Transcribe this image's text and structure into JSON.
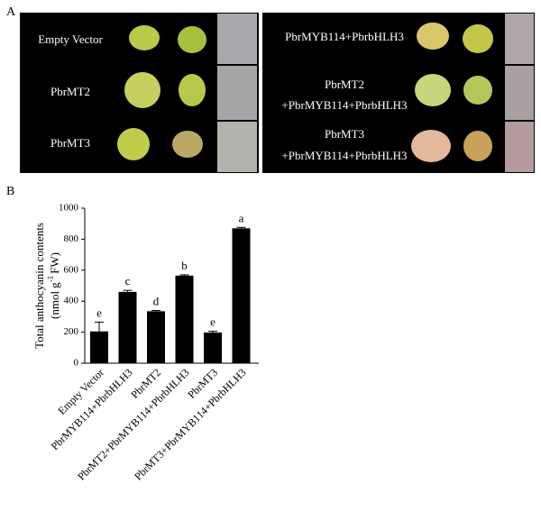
{
  "panel_a": {
    "label": "A",
    "left_labels": [
      "Empty Vector",
      "PbrMT2",
      "PbrMT3"
    ],
    "right_labels": [
      [
        "PbrMYB114+PbrbHLH3"
      ],
      [
        "PbrMT2",
        "+PbrMYB114+PbrbHLH3"
      ],
      [
        "PbrMT3",
        "+PbrMYB114+PbrbHLH3"
      ]
    ]
  },
  "panel_b": {
    "label": "B"
  },
  "chart_data": {
    "type": "bar",
    "ylabel": {
      "line1": "Total anthocyanin contents",
      "line2_start": "(nmol",
      "line2_g": "g",
      "line2_sup": "-1",
      "line2_end": "FW)"
    },
    "categories": [
      "Empty Vector",
      "PbrMYB114+PbrbHLH3",
      "PbrMT2",
      "PbrMT2+PbrMYB114+PbrbHLH3",
      "PbrMT3",
      "PbrMT3+PbrMYB114+PbrbHLH3"
    ],
    "values": [
      205,
      460,
      335,
      565,
      198,
      870
    ],
    "errors": [
      60,
      10,
      5,
      5,
      8,
      6
    ],
    "letters": [
      "e",
      "c",
      "d",
      "b",
      "e",
      "a"
    ],
    "color": "#000000",
    "ylim": [
      0,
      1000
    ],
    "yticks": [
      0,
      200,
      400,
      600,
      800,
      1000
    ]
  }
}
